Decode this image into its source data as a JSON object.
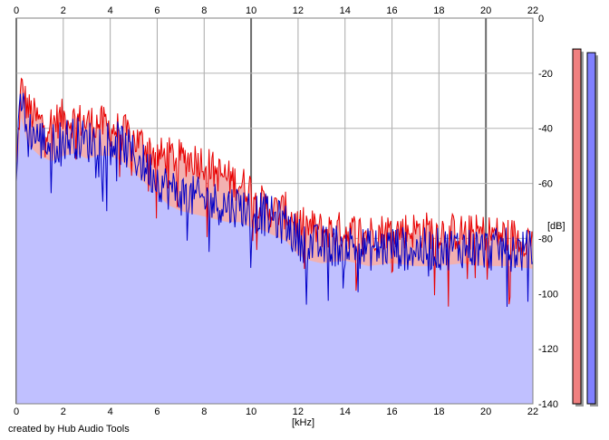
{
  "credit": "created by Hub Audio Tools",
  "chart_data": {
    "type": "area",
    "xlabel": "[kHz]",
    "ylabel": "[dB]",
    "xlim": [
      0,
      22
    ],
    "ylim": [
      -140,
      0
    ],
    "x_ticks": [
      0,
      2,
      4,
      6,
      8,
      10,
      12,
      14,
      16,
      18,
      20,
      22
    ],
    "y_ticks": [
      0,
      -20,
      -40,
      -60,
      -80,
      -100,
      -120,
      -140
    ],
    "grid": true,
    "colors": {
      "red": "#e80000",
      "blue": "#0000c8",
      "red_fill": "#f2b0b0",
      "blue_fill": "#c0c0ff",
      "red_meter": "#f08080",
      "blue_meter": "#8080ff"
    },
    "series": [
      {
        "color": "red",
        "x": [
          0,
          0.2,
          0.5,
          1,
          1.5,
          2,
          2.5,
          3,
          3.5,
          4,
          4.5,
          5,
          5.5,
          6,
          6.5,
          7,
          7.5,
          8,
          8.5,
          9,
          9.5,
          10,
          10.5,
          11,
          11.5,
          12,
          12.5,
          13,
          14,
          15,
          16,
          17,
          18,
          19,
          20,
          21,
          22
        ],
        "values": [
          -55,
          -25,
          -33,
          -38,
          -38,
          -36,
          -37,
          -38,
          -38,
          -40,
          -41,
          -44,
          -46,
          -50,
          -50,
          -51,
          -51,
          -52,
          -56,
          -58,
          -60,
          -62,
          -68,
          -70,
          -70,
          -75,
          -76,
          -77,
          -77,
          -78,
          -77,
          -77,
          -77,
          -78,
          -78,
          -79,
          -80
        ]
      },
      {
        "color": "blue",
        "x": [
          0,
          0.2,
          0.5,
          1,
          1.5,
          2,
          2.5,
          3,
          3.5,
          4,
          4.5,
          5,
          5.5,
          6,
          6.5,
          7,
          7.5,
          8,
          8.5,
          9,
          9.5,
          10,
          10.5,
          11,
          11.5,
          12,
          12.5,
          13,
          14,
          15,
          16,
          17,
          18,
          19,
          20,
          21,
          22
        ],
        "values": [
          -55,
          -30,
          -40,
          -44,
          -46,
          -44,
          -43,
          -45,
          -44,
          -44,
          -46,
          -50,
          -54,
          -58,
          -62,
          -64,
          -65,
          -66,
          -67,
          -68,
          -68,
          -70,
          -71,
          -73,
          -75,
          -80,
          -82,
          -83,
          -82,
          -84,
          -83,
          -84,
          -84,
          -83,
          -84,
          -84,
          -85
        ]
      }
    ],
    "meters": [
      {
        "color": "red",
        "level": 0.97
      },
      {
        "color": "blue",
        "level": 0.96
      }
    ]
  }
}
